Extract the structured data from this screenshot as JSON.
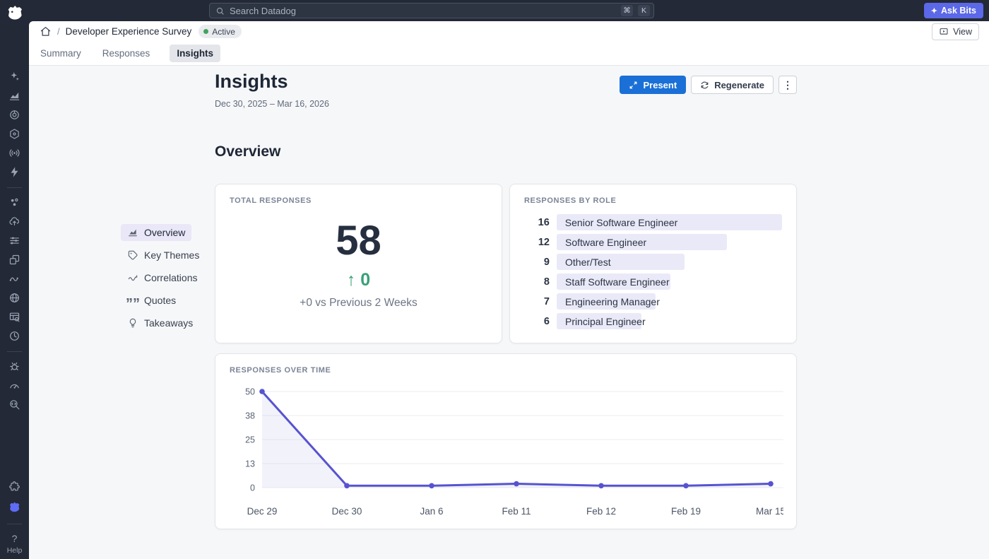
{
  "topbar": {
    "search_placeholder": "Search Datadog",
    "shortcut_cmd": "⌘",
    "shortcut_key": "K",
    "ask_bits_label": "Ask Bits",
    "ask_bits_spark": "✦"
  },
  "breadcrumb": {
    "separator": "/",
    "title": "Developer Experience Survey",
    "status_label": "Active",
    "view_label": "View"
  },
  "tabs": [
    {
      "label": "Summary",
      "active": false
    },
    {
      "label": "Responses",
      "active": false
    },
    {
      "label": "Insights",
      "active": true
    }
  ],
  "header": {
    "title": "Insights",
    "date_range": "Dec 30, 2025 – Mar 16, 2026",
    "present_label": "Present",
    "regenerate_label": "Regenerate",
    "more_label": "⋮"
  },
  "section_title": "Overview",
  "insights_nav": [
    {
      "label": "Overview",
      "icon": "overview-chart-icon",
      "active": true
    },
    {
      "label": "Key Themes",
      "icon": "tag-icon",
      "active": false
    },
    {
      "label": "Correlations",
      "icon": "correlation-icon",
      "active": false
    },
    {
      "label": "Quotes",
      "icon": "quotes-icon",
      "active": false
    },
    {
      "label": "Takeaways",
      "icon": "lightbulb-icon",
      "active": false
    }
  ],
  "cards": {
    "total": {
      "label": "TOTAL RESPONSES",
      "value": "58",
      "delta_arrow": "↑",
      "delta_value": "0",
      "comparison": "+0 vs Previous 2 Weeks"
    },
    "by_role": {
      "label": "RESPONSES BY ROLE"
    },
    "over_time": {
      "label": "RESPONSES OVER TIME"
    }
  },
  "chart_data": [
    {
      "type": "bar",
      "orientation": "horizontal",
      "title": "Responses by Role",
      "categories": [
        "Senior Software Engineer",
        "Software Engineer",
        "Other/Test",
        "Staff Software Engineer",
        "Engineering Manager",
        "Principal Engineer"
      ],
      "values": [
        16,
        12,
        9,
        8,
        7,
        6
      ],
      "xlim": [
        0,
        16
      ],
      "legend": false
    },
    {
      "type": "line",
      "title": "Responses over Time",
      "x": [
        "Dec 29",
        "Dec 30",
        "Jan 6",
        "Feb 11",
        "Feb 12",
        "Feb 19",
        "Mar 15"
      ],
      "values": [
        50,
        1,
        1,
        2,
        1,
        1,
        2
      ],
      "y_ticks": [
        0,
        13,
        25,
        38,
        50
      ],
      "ylim": [
        0,
        50
      ],
      "area_fill": true,
      "grid": true,
      "legend": false
    }
  ],
  "rail": {
    "icons": [
      "sparkles-icon",
      "area-chart-icon",
      "target-icon",
      "hexagon-icon",
      "signal-icon",
      "bolt-icon",
      "divider",
      "dots-cluster-icon",
      "cloud-icon",
      "sliders-icon",
      "windows-icon",
      "link-icon",
      "globe-icon",
      "table-search-icon",
      "compass-icon",
      "divider",
      "bug-icon",
      "gauge-icon",
      "code-search-icon",
      "spacer",
      "puzzle-icon",
      "datadog-active-icon",
      "divider"
    ],
    "help_icon": "?",
    "help_label": "Help"
  },
  "colors": {
    "topbar_bg": "#232936",
    "accent_blue": "#1a70d6",
    "ask_bits_purple": "#5b68e8",
    "active_dot_green": "#3fa45b",
    "line_purple": "#5753d0",
    "bar_lavender": "#e9e9f8",
    "delta_green": "#38a077",
    "active_nav_bg": "#e9e7f8",
    "main_bg": "#f6f7f9"
  }
}
